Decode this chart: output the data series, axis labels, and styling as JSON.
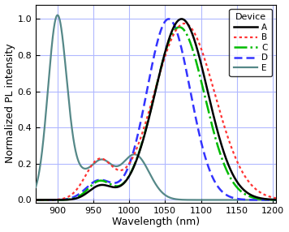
{
  "xlabel": "Wavelength (nm)",
  "ylabel": "Normalized PL intensity",
  "xlim": [
    870,
    1205
  ],
  "ylim": [
    -0.015,
    1.08
  ],
  "xticks": [
    900,
    950,
    1000,
    1050,
    1100,
    1150,
    1200
  ],
  "yticks": [
    0.0,
    0.2,
    0.4,
    0.6,
    0.8,
    1.0
  ],
  "grid_color": "#b0b8ff",
  "bg_color": "#ffffff",
  "devices": [
    "A",
    "B",
    "C",
    "D",
    "E"
  ],
  "colors": [
    "#000000",
    "#ff3333",
    "#00bb00",
    "#3333ff",
    "#558888"
  ],
  "linestyles": [
    "-",
    ":",
    "-.",
    "--",
    "-"
  ],
  "linewidths": [
    1.8,
    1.6,
    1.8,
    1.8,
    1.6
  ],
  "legend_title": "Device"
}
